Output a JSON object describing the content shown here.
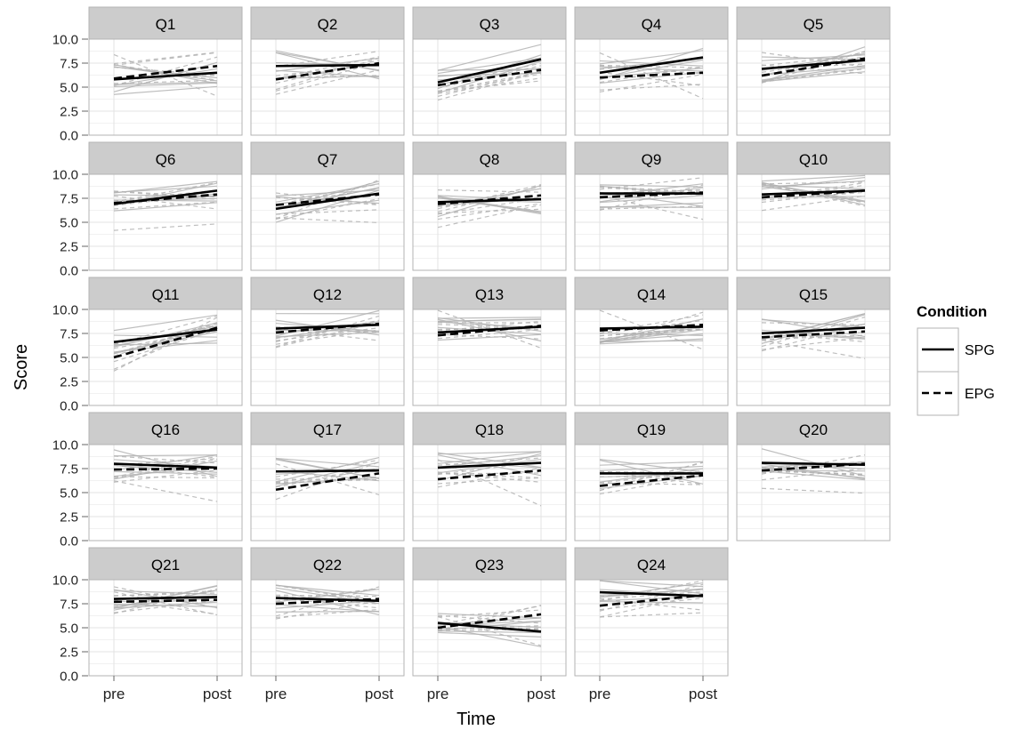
{
  "chart_data": {
    "type": "line",
    "title": "",
    "xlabel": "Time",
    "ylabel": "Score",
    "x": [
      "pre",
      "post"
    ],
    "ylim": [
      0,
      10
    ],
    "yticks": [
      "0.0",
      "2.5",
      "5.0",
      "7.5",
      "10.0"
    ],
    "grid": true,
    "legend": {
      "title": "Condition",
      "placement": "right",
      "entries": [
        {
          "name": "SPG",
          "style": "solid"
        },
        {
          "name": "EPG",
          "style": "dashed"
        }
      ]
    },
    "colors": {
      "mean_line": "#000000",
      "individual_line": "#b3b3b3",
      "panel_background": "#ffffff",
      "grid": "#e6e6e6",
      "strip": "#cccccc",
      "panel_border": "#b3b3b3"
    },
    "panels": [
      {
        "label": "Q1",
        "SPG": [
          5.8,
          6.5
        ],
        "EPG": [
          5.9,
          7.2
        ]
      },
      {
        "label": "Q2",
        "SPG": [
          7.2,
          7.3
        ],
        "EPG": [
          5.8,
          7.5
        ]
      },
      {
        "label": "Q3",
        "SPG": [
          5.5,
          7.9
        ],
        "EPG": [
          5.2,
          6.8
        ]
      },
      {
        "label": "Q4",
        "SPG": [
          6.5,
          8.1
        ],
        "EPG": [
          6.0,
          6.5
        ]
      },
      {
        "label": "Q5",
        "SPG": [
          6.9,
          7.8
        ],
        "EPG": [
          6.2,
          8.0
        ]
      },
      {
        "label": "Q6",
        "SPG": [
          6.9,
          8.3
        ],
        "EPG": [
          7.0,
          7.9
        ]
      },
      {
        "label": "Q7",
        "SPG": [
          6.4,
          8.0
        ],
        "EPG": [
          6.8,
          7.9
        ]
      },
      {
        "label": "Q8",
        "SPG": [
          7.1,
          7.4
        ],
        "EPG": [
          6.9,
          7.8
        ]
      },
      {
        "label": "Q9",
        "SPG": [
          8.0,
          8.0
        ],
        "EPG": [
          7.6,
          8.1
        ]
      },
      {
        "label": "Q10",
        "SPG": [
          7.9,
          8.3
        ],
        "EPG": [
          7.6,
          8.3
        ]
      },
      {
        "label": "Q11",
        "SPG": [
          6.6,
          7.9
        ],
        "EPG": [
          5.0,
          8.1
        ]
      },
      {
        "label": "Q12",
        "SPG": [
          8.0,
          8.4
        ],
        "EPG": [
          7.6,
          8.5
        ]
      },
      {
        "label": "Q13",
        "SPG": [
          7.6,
          8.2
        ],
        "EPG": [
          7.3,
          8.3
        ]
      },
      {
        "label": "Q14",
        "SPG": [
          8.0,
          8.2
        ],
        "EPG": [
          7.8,
          8.4
        ]
      },
      {
        "label": "Q15",
        "SPG": [
          7.5,
          8.1
        ],
        "EPG": [
          7.1,
          7.7
        ]
      },
      {
        "label": "Q16",
        "SPG": [
          8.0,
          7.6
        ],
        "EPG": [
          7.4,
          7.5
        ]
      },
      {
        "label": "Q17",
        "SPG": [
          7.2,
          7.3
        ],
        "EPG": [
          5.3,
          7.0
        ]
      },
      {
        "label": "Q18",
        "SPG": [
          7.6,
          8.1
        ],
        "EPG": [
          6.4,
          7.3
        ]
      },
      {
        "label": "Q19",
        "SPG": [
          7.0,
          7.0
        ],
        "EPG": [
          5.7,
          6.8
        ]
      },
      {
        "label": "Q20",
        "SPG": [
          8.1,
          7.9
        ],
        "EPG": [
          7.3,
          8.0
        ]
      },
      {
        "label": "Q21",
        "SPG": [
          8.0,
          8.2
        ],
        "EPG": [
          7.7,
          7.9
        ]
      },
      {
        "label": "Q22",
        "SPG": [
          8.1,
          7.8
        ],
        "EPG": [
          7.5,
          8.0
        ]
      },
      {
        "label": "Q23",
        "SPG": [
          5.5,
          4.6
        ],
        "EPG": [
          5.0,
          6.4
        ]
      },
      {
        "label": "Q24",
        "SPG": [
          8.7,
          8.3
        ],
        "EPG": [
          7.3,
          8.4
        ]
      }
    ]
  }
}
